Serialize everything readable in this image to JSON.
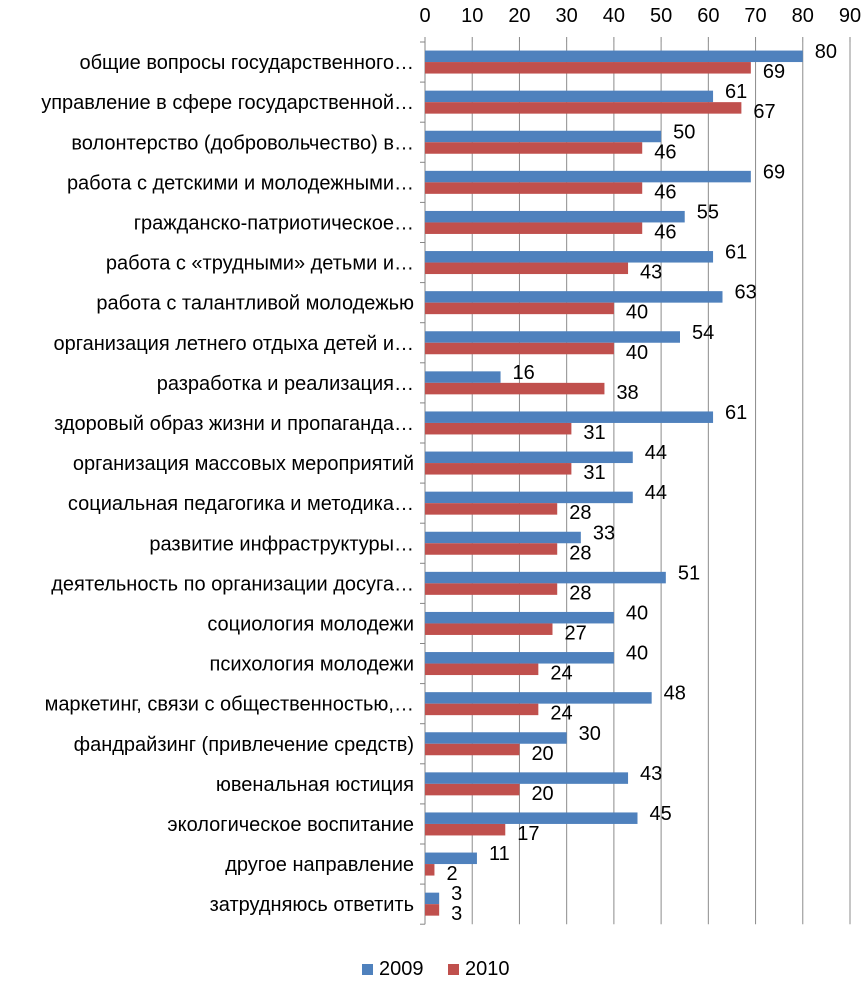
{
  "chart_data": {
    "type": "bar",
    "orientation": "horizontal",
    "x_axis_position": "top",
    "grid": true,
    "legend_position": "bottom",
    "xlim": [
      0,
      90
    ],
    "x_ticks": [
      "0",
      "10",
      "20",
      "30",
      "40",
      "50",
      "60",
      "70",
      "80",
      "90"
    ],
    "categories": [
      "общие вопросы государственного…",
      "управление в сфере государственной…",
      "волонтерство (добровольчество) в…",
      "работа с детскими и молодежными…",
      "гражданско-патриотическое…",
      "работа с «трудными» детьми и…",
      "работа с талантливой молодежью",
      "организация летнего отдыха детей и…",
      "разработка и реализация…",
      "здоровый образ жизни и пропаганда…",
      "организация массовых мероприятий",
      "социальная педагогика и методика…",
      "развитие инфраструктуры…",
      "деятельность по организации досуга…",
      "социология молодежи",
      "психология молодежи",
      "маркетинг, связи с общественностью,…",
      "фандрайзинг (привлечение средств)",
      "ювенальная юстиция",
      "экологическое воспитание",
      "другое направление",
      "затрудняюсь ответить"
    ],
    "series": [
      {
        "name": "2009",
        "color": "#4F81BD",
        "values": [
          80,
          61,
          50,
          69,
          55,
          61,
          63,
          54,
          16,
          61,
          44,
          44,
          33,
          51,
          40,
          40,
          48,
          30,
          43,
          45,
          11,
          3
        ]
      },
      {
        "name": "2010",
        "color": "#C0504D",
        "values": [
          69,
          67,
          46,
          46,
          46,
          43,
          40,
          40,
          38,
          31,
          31,
          28,
          28,
          28,
          27,
          24,
          24,
          20,
          20,
          17,
          2,
          3
        ]
      }
    ]
  }
}
